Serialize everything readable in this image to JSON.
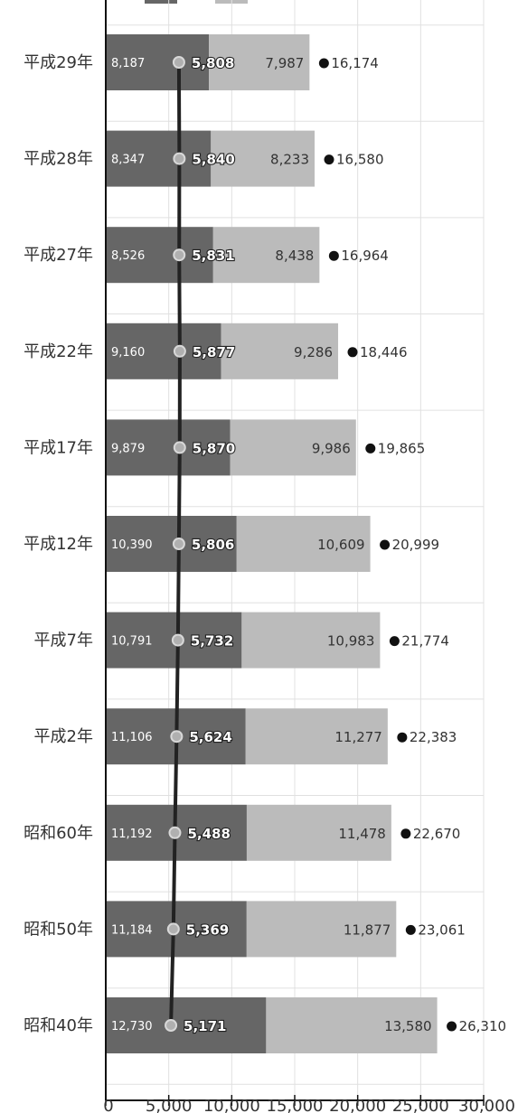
{
  "chart_data": {
    "type": "bar",
    "stacked": true,
    "orientation": "horizontal",
    "categories": [
      "平成29年",
      "平成28年",
      "平成27年",
      "平成22年",
      "平成17年",
      "平成12年",
      "平成7年",
      "平成2年",
      "昭和60年",
      "昭和50年",
      "昭和40年"
    ],
    "series": [
      {
        "color": "#666666",
        "values": [
          8187,
          8347,
          8526,
          9160,
          9879,
          10390,
          10791,
          11106,
          11192,
          11184,
          12730
        ]
      },
      {
        "color": "#bbbbbb",
        "values": [
          7987,
          8233,
          8438,
          9286,
          9986,
          10609,
          10983,
          11277,
          11478,
          11877,
          13580
        ]
      }
    ],
    "totals": [
      16174,
      16580,
      16964,
      18446,
      19865,
      20999,
      21774,
      22383,
      22670,
      23061,
      26310
    ],
    "line": {
      "color": "#222222",
      "values": [
        5808,
        5840,
        5831,
        5877,
        5870,
        5806,
        5732,
        5624,
        5488,
        5369,
        5171
      ]
    },
    "x_ticks": [
      "0",
      "5,000",
      "10,000",
      "15,000",
      "20,000",
      "25,000",
      "30,000"
    ],
    "xlim": [
      0,
      30000
    ],
    "grid": true,
    "legend_swatches": [
      "#666666",
      "#bbbbbb"
    ]
  }
}
